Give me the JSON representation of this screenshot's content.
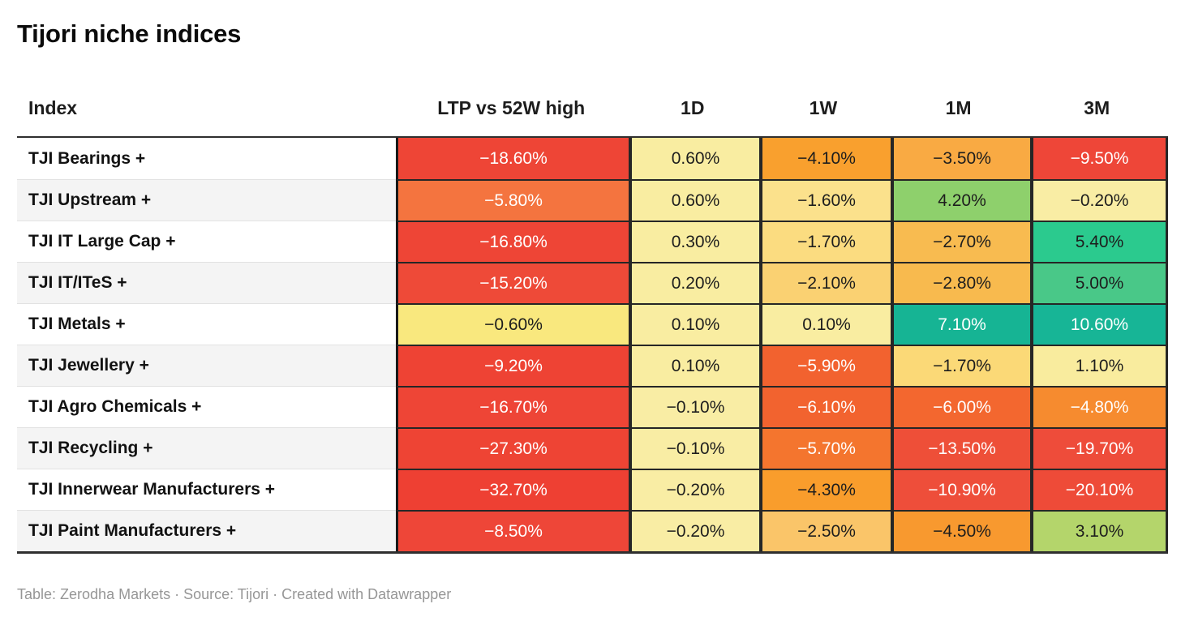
{
  "title": "Tijori niche indices",
  "footer": {
    "text": "Table: Zerodha Markets · Source: Tijori · Created with Datawrapper"
  },
  "colors": {
    "text_dark": "#1d1d1d",
    "text_light": "#ffffff",
    "border_dark": "#262626",
    "index_divider": "#e2e2e2",
    "stripe": "#f4f4f4",
    "footer_text": "#969696"
  },
  "table": {
    "columns": [
      {
        "key": "index",
        "label": "Index"
      },
      {
        "key": "ltp",
        "label": "LTP vs 52W high"
      },
      {
        "key": "1d",
        "label": "1D"
      },
      {
        "key": "1w",
        "label": "1W"
      },
      {
        "key": "1m",
        "label": "1M"
      },
      {
        "key": "3m",
        "label": "3M"
      }
    ],
    "rows": [
      {
        "index": "TJI Bearings +",
        "cells": [
          {
            "v": "−18.60%",
            "bg": "#ee4536",
            "fg": "light"
          },
          {
            "v": "0.60%",
            "bg": "#f9eda1",
            "fg": "dark"
          },
          {
            "v": "−4.10%",
            "bg": "#f9a02e",
            "fg": "dark"
          },
          {
            "v": "−3.50%",
            "bg": "#f9aa43",
            "fg": "dark"
          },
          {
            "v": "−9.50%",
            "bg": "#ee4638",
            "fg": "light"
          }
        ]
      },
      {
        "index": "TJI Upstream +",
        "cells": [
          {
            "v": "−5.80%",
            "bg": "#f4743f",
            "fg": "light"
          },
          {
            "v": "0.60%",
            "bg": "#f9eda1",
            "fg": "dark"
          },
          {
            "v": "−1.60%",
            "bg": "#fbe18c",
            "fg": "dark"
          },
          {
            "v": "4.20%",
            "bg": "#8ed06c",
            "fg": "dark"
          },
          {
            "v": "−0.20%",
            "bg": "#f9eda4",
            "fg": "dark"
          }
        ]
      },
      {
        "index": "TJI IT Large Cap +",
        "cells": [
          {
            "v": "−16.80%",
            "bg": "#ee4536",
            "fg": "light"
          },
          {
            "v": "0.30%",
            "bg": "#f9eda1",
            "fg": "dark"
          },
          {
            "v": "−1.70%",
            "bg": "#fbdc80",
            "fg": "dark"
          },
          {
            "v": "−2.70%",
            "bg": "#f8bb50",
            "fg": "dark"
          },
          {
            "v": "5.40%",
            "bg": "#2bca8e",
            "fg": "dark"
          }
        ]
      },
      {
        "index": "TJI IT/ITeS +",
        "cells": [
          {
            "v": "−15.20%",
            "bg": "#ee4a38",
            "fg": "light"
          },
          {
            "v": "0.20%",
            "bg": "#f9eda1",
            "fg": "dark"
          },
          {
            "v": "−2.10%",
            "bg": "#fad172",
            "fg": "dark"
          },
          {
            "v": "−2.80%",
            "bg": "#f8ba4e",
            "fg": "dark"
          },
          {
            "v": "5.00%",
            "bg": "#49c888",
            "fg": "dark"
          }
        ]
      },
      {
        "index": "TJI Metals +",
        "cells": [
          {
            "v": "−0.60%",
            "bg": "#f9e87e",
            "fg": "dark"
          },
          {
            "v": "0.10%",
            "bg": "#f9eda1",
            "fg": "dark"
          },
          {
            "v": "0.10%",
            "bg": "#f9eda1",
            "fg": "dark"
          },
          {
            "v": "7.10%",
            "bg": "#16b494",
            "fg": "light"
          },
          {
            "v": "10.60%",
            "bg": "#17b596",
            "fg": "light"
          }
        ]
      },
      {
        "index": "TJI Jewellery +",
        "cells": [
          {
            "v": "−9.20%",
            "bg": "#ee4334",
            "fg": "light"
          },
          {
            "v": "0.10%",
            "bg": "#f9eda1",
            "fg": "dark"
          },
          {
            "v": "−5.90%",
            "bg": "#f2622f",
            "fg": "light"
          },
          {
            "v": "−1.70%",
            "bg": "#fbd977",
            "fg": "dark"
          },
          {
            "v": "1.10%",
            "bg": "#f9ec9e",
            "fg": "dark"
          }
        ]
      },
      {
        "index": "TJI Agro Chemicals +",
        "cells": [
          {
            "v": "−16.70%",
            "bg": "#ee4536",
            "fg": "light"
          },
          {
            "v": "−0.10%",
            "bg": "#f9eda4",
            "fg": "dark"
          },
          {
            "v": "−6.10%",
            "bg": "#f2632f",
            "fg": "light"
          },
          {
            "v": "−6.00%",
            "bg": "#f3672f",
            "fg": "light"
          },
          {
            "v": "−4.80%",
            "bg": "#f68b2f",
            "fg": "light"
          }
        ]
      },
      {
        "index": "TJI Recycling +",
        "cells": [
          {
            "v": "−27.30%",
            "bg": "#ee4434",
            "fg": "light"
          },
          {
            "v": "−0.10%",
            "bg": "#f9eda4",
            "fg": "dark"
          },
          {
            "v": "−5.70%",
            "bg": "#f4752e",
            "fg": "light"
          },
          {
            "v": "−13.50%",
            "bg": "#ee4f38",
            "fg": "light"
          },
          {
            "v": "−19.70%",
            "bg": "#ee4c3a",
            "fg": "light"
          }
        ]
      },
      {
        "index": "TJI Innerwear Manufacturers +",
        "cells": [
          {
            "v": "−32.70%",
            "bg": "#ee4033",
            "fg": "light"
          },
          {
            "v": "−0.20%",
            "bg": "#f9eda4",
            "fg": "dark"
          },
          {
            "v": "−4.30%",
            "bg": "#f99d2c",
            "fg": "dark"
          },
          {
            "v": "−10.90%",
            "bg": "#ee4e3a",
            "fg": "light"
          },
          {
            "v": "−20.10%",
            "bg": "#ee4b38",
            "fg": "light"
          }
        ]
      },
      {
        "index": "TJI Paint Manufacturers +",
        "cells": [
          {
            "v": "−8.50%",
            "bg": "#ee4638",
            "fg": "light"
          },
          {
            "v": "−0.20%",
            "bg": "#f9eda4",
            "fg": "dark"
          },
          {
            "v": "−2.50%",
            "bg": "#fac569",
            "fg": "dark"
          },
          {
            "v": "−4.50%",
            "bg": "#f8992f",
            "fg": "dark"
          },
          {
            "v": "3.10%",
            "bg": "#b4d56b",
            "fg": "dark"
          }
        ]
      }
    ]
  },
  "chart_data": {
    "type": "table",
    "title": "Tijori niche indices",
    "columns": [
      "Index",
      "LTP vs 52W high",
      "1D",
      "1W",
      "1M",
      "3M"
    ],
    "rows": [
      [
        "TJI Bearings +",
        -18.6,
        0.6,
        -4.1,
        -3.5,
        -9.5
      ],
      [
        "TJI Upstream +",
        -5.8,
        0.6,
        -1.6,
        4.2,
        -0.2
      ],
      [
        "TJI IT Large Cap +",
        -16.8,
        0.3,
        -1.7,
        -2.7,
        5.4
      ],
      [
        "TJI IT/ITeS +",
        -15.2,
        0.2,
        -2.1,
        -2.8,
        5.0
      ],
      [
        "TJI Metals +",
        -0.6,
        0.1,
        0.1,
        7.1,
        10.6
      ],
      [
        "TJI Jewellery +",
        -9.2,
        0.1,
        -5.9,
        -1.7,
        1.1
      ],
      [
        "TJI Agro Chemicals +",
        -16.7,
        -0.1,
        -6.1,
        -6.0,
        -4.8
      ],
      [
        "TJI Recycling +",
        -27.3,
        -0.1,
        -5.7,
        -13.5,
        -19.7
      ],
      [
        "TJI Innerwear Manufacturers +",
        -32.7,
        -0.2,
        -4.3,
        -10.9,
        -20.1
      ],
      [
        "TJI Paint Manufacturers +",
        -8.5,
        -0.2,
        -2.5,
        -4.5,
        3.1
      ]
    ],
    "units": "percent",
    "legend_position": "none",
    "grid": "dark cell borders",
    "color_scale": "diverging heatmap red (negative) → yellow (near zero) → green/teal (positive)",
    "attribution": "Table: Zerodha Markets · Source: Tijori · Created with Datawrapper"
  }
}
